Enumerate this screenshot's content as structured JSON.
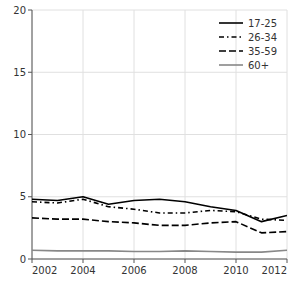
{
  "chart_data": {
    "type": "line",
    "x": [
      2002,
      2003,
      2004,
      2005,
      2006,
      2007,
      2008,
      2009,
      2010,
      2011,
      2012
    ],
    "series": [
      {
        "name": "17-25",
        "color": "#000000",
        "line_style": "solid",
        "values": [
          4.8,
          4.7,
          5.0,
          4.4,
          4.7,
          4.8,
          4.6,
          4.2,
          3.9,
          3.0,
          3.5
        ]
      },
      {
        "name": "26-34",
        "color": "#000000",
        "line_style": "dashdot",
        "values": [
          4.6,
          4.5,
          4.8,
          4.2,
          4.0,
          3.7,
          3.7,
          3.9,
          3.8,
          3.2,
          3.1
        ]
      },
      {
        "name": "35-59",
        "color": "#000000",
        "line_style": "dashed",
        "values": [
          3.3,
          3.2,
          3.2,
          3.0,
          2.9,
          2.7,
          2.7,
          2.9,
          3.0,
          2.1,
          2.2
        ]
      },
      {
        "name": "60+",
        "color": "#888888",
        "line_style": "solid",
        "values": [
          0.7,
          0.65,
          0.65,
          0.65,
          0.6,
          0.6,
          0.65,
          0.6,
          0.55,
          0.55,
          0.7
        ]
      }
    ],
    "xlim": [
      2002,
      2012
    ],
    "xticks": [
      2002,
      2004,
      2006,
      2008,
      2010,
      2012
    ],
    "ylim": [
      0,
      20
    ],
    "yticks": [
      0,
      5,
      10,
      15,
      20
    ],
    "grid": true,
    "legend": "upper right"
  }
}
